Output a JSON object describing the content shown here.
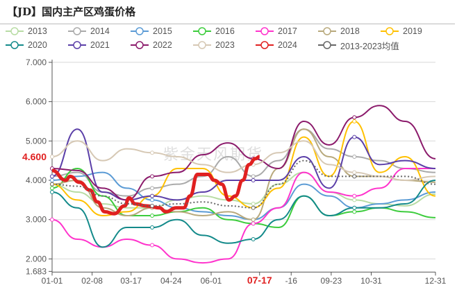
{
  "title": "【JD】国内主产区鸡蛋价格",
  "watermark": "紫金天风期货",
  "chart_data": {
    "type": "line",
    "title": "【JD】国内主产区鸡蛋价格",
    "xlabel": "",
    "ylabel": "",
    "ylim": [
      1.683,
      7.0
    ],
    "y_ticks": [
      "1.683",
      "2.000",
      "3.000",
      "4.000",
      "5.000",
      "6.000",
      "7.000"
    ],
    "x_ticks": [
      "01-01",
      "02-08",
      "03-17",
      "04-24",
      "06-01",
      "07-17",
      "-16",
      "09-23",
      "10-31",
      "12-31"
    ],
    "highlight": {
      "x": "07-17",
      "y": "4.600",
      "color": "#e02020"
    },
    "grid": "horizontal",
    "legend": "top",
    "x": [
      "01-01",
      "01-25",
      "02-18",
      "03-13",
      "04-06",
      "04-30",
      "05-24",
      "06-17",
      "07-11",
      "08-04",
      "08-28",
      "09-21",
      "10-15",
      "11-08",
      "12-02",
      "12-31"
    ],
    "series": [
      {
        "name": "2013",
        "color": "#b8dca4",
        "values": [
          3.9,
          3.7,
          3.4,
          3.3,
          3.3,
          3.5,
          3.6,
          3.5,
          3.4,
          3.9,
          4.2,
          3.7,
          3.5,
          3.4,
          3.35,
          3.65
        ]
      },
      {
        "name": "2014",
        "color": "#aaaaaa",
        "values": [
          4.1,
          4.2,
          3.7,
          3.6,
          3.8,
          3.9,
          4.1,
          4.6,
          4.1,
          4.5,
          5.3,
          4.8,
          4.6,
          4.5,
          4.3,
          4.2
        ]
      },
      {
        "name": "2015",
        "color": "#5b9bd5",
        "values": [
          4.0,
          4.1,
          4.2,
          3.8,
          3.5,
          3.3,
          3.2,
          3.1,
          3.0,
          3.3,
          3.9,
          3.6,
          3.3,
          3.4,
          3.5,
          3.7
        ]
      },
      {
        "name": "2016",
        "color": "#3ccc3c",
        "values": [
          3.8,
          4.3,
          3.6,
          3.1,
          3.1,
          3.2,
          3.3,
          3.0,
          2.9,
          2.8,
          3.6,
          3.1,
          3.2,
          3.3,
          3.2,
          3.05
        ]
      },
      {
        "name": "2017",
        "color": "#ff33cc",
        "values": [
          3.0,
          2.5,
          2.3,
          2.5,
          2.35,
          2.0,
          1.9,
          2.0,
          2.9,
          3.3,
          4.2,
          3.7,
          3.6,
          3.8,
          4.3,
          4.3
        ]
      },
      {
        "name": "2018",
        "color": "#b8a97c",
        "values": [
          3.9,
          4.0,
          3.3,
          3.1,
          3.3,
          3.2,
          3.1,
          3.2,
          3.0,
          4.3,
          5.3,
          4.6,
          4.1,
          4.1,
          4.0,
          3.95
        ]
      },
      {
        "name": "2019",
        "color": "#ffc000",
        "values": [
          3.9,
          3.5,
          3.1,
          3.2,
          3.6,
          4.3,
          4.3,
          3.6,
          3.3,
          3.8,
          5.1,
          4.1,
          5.5,
          4.2,
          4.6,
          3.6
        ]
      },
      {
        "name": "2020",
        "color": "#138a8a",
        "values": [
          3.7,
          3.3,
          2.3,
          2.8,
          2.8,
          3.0,
          2.6,
          2.4,
          2.5,
          3.0,
          3.6,
          3.1,
          3.3,
          3.3,
          3.4,
          4.0
        ]
      },
      {
        "name": "2021",
        "color": "#5b3fa8",
        "values": [
          4.1,
          5.3,
          3.7,
          3.5,
          3.6,
          3.5,
          3.7,
          4.0,
          4.0,
          4.0,
          4.6,
          3.8,
          5.1,
          4.4,
          4.5,
          4.3
        ]
      },
      {
        "name": "2022",
        "color": "#8b1a6b",
        "values": [
          4.3,
          4.25,
          3.8,
          3.5,
          4.1,
          4.2,
          4.65,
          4.95,
          4.55,
          4.3,
          5.5,
          4.9,
          5.6,
          5.9,
          5.5,
          4.55
        ]
      },
      {
        "name": "2023",
        "color": "#d6c8b4",
        "values": [
          4.6,
          5.0,
          4.5,
          4.8,
          4.7,
          4.6,
          4.4,
          4.2,
          4.4,
          4.7,
          5.0,
          4.4,
          4.2,
          4.1,
          4.0,
          4.1
        ]
      },
      {
        "name": "2024",
        "color": "#e02020",
        "x": [
          "01-01",
          "01-14",
          "01-18",
          "01-27",
          "02-06",
          "02-13",
          "02-20",
          "03-01",
          "03-11",
          "03-15",
          "03-21",
          "03-31",
          "04-13",
          "04-19",
          "04-29",
          "05-06",
          "05-12",
          "05-19",
          "05-29",
          "06-04",
          "06-11",
          "06-18",
          "06-24",
          "07-01",
          "07-07",
          "07-13",
          "07-17"
        ],
        "values": [
          4.25,
          4.0,
          4.1,
          3.95,
          3.75,
          3.45,
          3.2,
          3.15,
          3.35,
          3.55,
          3.4,
          3.35,
          3.3,
          3.2,
          3.3,
          3.3,
          3.6,
          4.15,
          4.15,
          4.0,
          3.9,
          3.5,
          3.6,
          4.0,
          4.4,
          4.55,
          4.6
        ]
      },
      {
        "name": "2013-2023均值",
        "color": "#666666",
        "dashed": true,
        "values": [
          3.9,
          3.85,
          3.6,
          3.4,
          3.35,
          3.4,
          3.45,
          3.35,
          3.3,
          3.9,
          4.5,
          4.1,
          4.1,
          4.1,
          4.1,
          3.9
        ]
      }
    ]
  }
}
